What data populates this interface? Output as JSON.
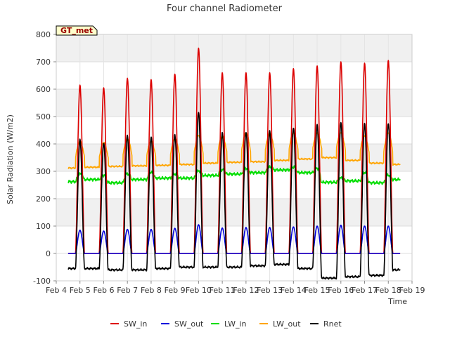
{
  "chart_data": {
    "type": "line",
    "title": "Four channel Radiometer",
    "xlabel": "Time",
    "ylabel": "Solar Radiation (W/m2)",
    "station_tag": "GT_met",
    "xlim": [
      4,
      19
    ],
    "ylim": [
      -100,
      800
    ],
    "x_ticks": [
      {
        "x": 4,
        "label": "Feb 4"
      },
      {
        "x": 5,
        "label": "Feb 5"
      },
      {
        "x": 6,
        "label": "Feb 6"
      },
      {
        "x": 7,
        "label": "Feb 7"
      },
      {
        "x": 8,
        "label": "Feb 8"
      },
      {
        "x": 9,
        "label": "Feb 9"
      },
      {
        "x": 10,
        "label": "Feb 10"
      },
      {
        "x": 11,
        "label": "Feb 11"
      },
      {
        "x": 12,
        "label": "Feb 12"
      },
      {
        "x": 13,
        "label": "Feb 13"
      },
      {
        "x": 14,
        "label": "Feb 14"
      },
      {
        "x": 15,
        "label": "Feb 15"
      },
      {
        "x": 16,
        "label": "Feb 16"
      },
      {
        "x": 17,
        "label": "Feb 17"
      },
      {
        "x": 18,
        "label": "Feb 18"
      },
      {
        "x": 19,
        "label": "Feb 19"
      }
    ],
    "y_ticks": [
      -100,
      0,
      100,
      200,
      300,
      400,
      500,
      600,
      700,
      800
    ],
    "grid": true,
    "band_fill": "#f0f0f0",
    "legend_position": "bottom",
    "series_shape": {
      "x_start": 4.5,
      "x_end": 18.5,
      "day_peak_center_offset": 0.5,
      "day_peaks": [
        {
          "day": 5,
          "SW_in": 615,
          "SW_out": 85,
          "LW_in_day": 290,
          "LW_out_peak": 410,
          "Rnet_peak": 415
        },
        {
          "day": 6,
          "SW_in": 605,
          "SW_out": 82,
          "LW_in_day": 285,
          "LW_out_peak": 405,
          "Rnet_peak": 405
        },
        {
          "day": 7,
          "SW_in": 640,
          "SW_out": 88,
          "LW_in_day": 290,
          "LW_out_peak": 420,
          "Rnet_peak": 430
        },
        {
          "day": 8,
          "SW_in": 635,
          "SW_out": 88,
          "LW_in_day": 295,
          "LW_out_peak": 410,
          "Rnet_peak": 425
        },
        {
          "day": 9,
          "SW_in": 655,
          "SW_out": 92,
          "LW_in_day": 290,
          "LW_out_peak": 420,
          "Rnet_peak": 435
        },
        {
          "day": 10,
          "SW_in": 750,
          "SW_out": 105,
          "LW_in_day": 300,
          "LW_out_peak": 430,
          "Rnet_peak": 515
        },
        {
          "day": 11,
          "SW_in": 660,
          "SW_out": 93,
          "LW_in_day": 305,
          "LW_out_peak": 430,
          "Rnet_peak": 440
        },
        {
          "day": 12,
          "SW_in": 660,
          "SW_out": 95,
          "LW_in_day": 310,
          "LW_out_peak": 440,
          "Rnet_peak": 445
        },
        {
          "day": 13,
          "SW_in": 660,
          "SW_out": 95,
          "LW_in_day": 315,
          "LW_out_peak": 440,
          "Rnet_peak": 445
        },
        {
          "day": 14,
          "SW_in": 675,
          "SW_out": 97,
          "LW_in_day": 315,
          "LW_out_peak": 440,
          "Rnet_peak": 460
        },
        {
          "day": 15,
          "SW_in": 685,
          "SW_out": 100,
          "LW_in_day": 310,
          "LW_out_peak": 440,
          "Rnet_peak": 470
        },
        {
          "day": 16,
          "SW_in": 700,
          "SW_out": 103,
          "LW_in_day": 275,
          "LW_out_peak": 440,
          "Rnet_peak": 478
        },
        {
          "day": 17,
          "SW_in": 695,
          "SW_out": 100,
          "LW_in_day": 295,
          "LW_out_peak": 430,
          "Rnet_peak": 475
        },
        {
          "day": 18,
          "SW_in": 705,
          "SW_out": 100,
          "LW_in_day": 285,
          "LW_out_peak": 440,
          "Rnet_peak": 475
        }
      ],
      "night_levels": {
        "SW_in": 0,
        "SW_out": 0,
        "LW_in": [
          262,
          270,
          258,
          270,
          275,
          275,
          285,
          290,
          295,
          305,
          295,
          260,
          265,
          258,
          270
        ],
        "LW_out": [
          312,
          315,
          318,
          320,
          322,
          325,
          330,
          333,
          335,
          340,
          345,
          350,
          340,
          330,
          325
        ],
        "Rnet": [
          -55,
          -55,
          -60,
          -60,
          -55,
          -50,
          -50,
          -50,
          -45,
          -40,
          -55,
          -90,
          -85,
          -80,
          -60
        ]
      }
    },
    "series": [
      {
        "name": "SW_in",
        "color": "#dd0000"
      },
      {
        "name": "SW_out",
        "color": "#0000dd"
      },
      {
        "name": "LW_in",
        "color": "#00dd00"
      },
      {
        "name": "LW_out",
        "color": "#ffa500"
      },
      {
        "name": "Rnet",
        "color": "#000000"
      }
    ]
  }
}
